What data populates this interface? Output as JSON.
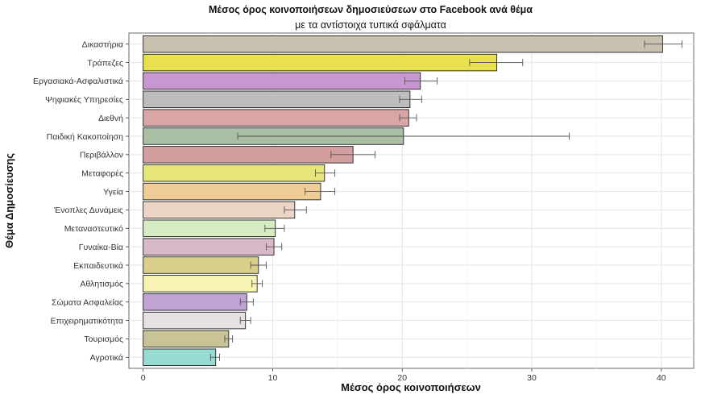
{
  "chart_data": {
    "type": "bar",
    "orientation": "horizontal",
    "title": "Μέσος όρος κοινοποιήσεων δημοσιεύσεων στο Facebook ανά θέμα",
    "subtitle": "με τα αντίστοιχα τυπικά σφάλματα",
    "xlabel": "Μέσος όρος κοινοποιήσεων",
    "ylabel": "Θέμα Δημοσίευσης",
    "xlim": [
      -1.1,
      42.5
    ],
    "xticks": [
      0,
      10,
      20,
      30,
      40
    ],
    "xtick_labels": [
      "0",
      "10",
      "20",
      "30",
      "40"
    ],
    "grid": true,
    "legend": "none",
    "bars": [
      {
        "category": "Δικαστήρια",
        "value": 40.1,
        "err_low": 38.7,
        "err_high": 41.6,
        "color": "#c9c1b0"
      },
      {
        "category": "Τράπεζες",
        "value": 27.3,
        "err_low": 25.2,
        "err_high": 29.3,
        "color": "#e8e04e"
      },
      {
        "category": "Εργασιακά-Ασφαλιστικά",
        "value": 21.4,
        "err_low": 20.2,
        "err_high": 22.7,
        "color": "#c896d0"
      },
      {
        "category": "Ψηφιακές Υπηρεσίες",
        "value": 20.6,
        "err_low": 19.8,
        "err_high": 21.5,
        "color": "#bdbdbd"
      },
      {
        "category": "Διεθνή",
        "value": 20.5,
        "err_low": 19.8,
        "err_high": 21.1,
        "color": "#d9a5a5"
      },
      {
        "category": "Παιδική Κακοποίηση",
        "value": 20.1,
        "err_low": 7.3,
        "err_high": 32.9,
        "color": "#a9bfa4"
      },
      {
        "category": "Περιβάλλον",
        "value": 16.2,
        "err_low": 14.5,
        "err_high": 17.9,
        "color": "#d49e9e"
      },
      {
        "category": "Μεταφορές",
        "value": 14.0,
        "err_low": 13.3,
        "err_high": 14.8,
        "color": "#e6e67a"
      },
      {
        "category": "Υγεία",
        "value": 13.7,
        "err_low": 12.5,
        "err_high": 14.8,
        "color": "#f0cc96"
      },
      {
        "category": "Ένοπλες Δυνάμεις",
        "value": 11.7,
        "err_low": 10.9,
        "err_high": 12.6,
        "color": "#ecd5c6"
      },
      {
        "category": "Μεταναστευτικό",
        "value": 10.2,
        "err_low": 9.4,
        "err_high": 10.9,
        "color": "#d6edc4"
      },
      {
        "category": "Γυναίκα-Βία",
        "value": 10.1,
        "err_low": 9.5,
        "err_high": 10.7,
        "color": "#d9b8ca"
      },
      {
        "category": "Εκπαιδευτικά",
        "value": 8.9,
        "err_low": 8.3,
        "err_high": 9.5,
        "color": "#d8d08a"
      },
      {
        "category": "Αθλητισμός",
        "value": 8.8,
        "err_low": 8.4,
        "err_high": 9.2,
        "color": "#f6f4b0"
      },
      {
        "category": "Σώματα Ασφαλείας",
        "value": 8.0,
        "err_low": 7.5,
        "err_high": 8.5,
        "color": "#c0a4d6"
      },
      {
        "category": "Επιχειρηματικότητα",
        "value": 7.9,
        "err_low": 7.5,
        "err_high": 8.3,
        "color": "#e5e1e4"
      },
      {
        "category": "Τουρισμός",
        "value": 6.6,
        "err_low": 6.3,
        "err_high": 6.9,
        "color": "#c8c498"
      },
      {
        "category": "Αγροτικά",
        "value": 5.6,
        "err_low": 5.2,
        "err_high": 5.9,
        "color": "#96dcd2"
      }
    ]
  }
}
